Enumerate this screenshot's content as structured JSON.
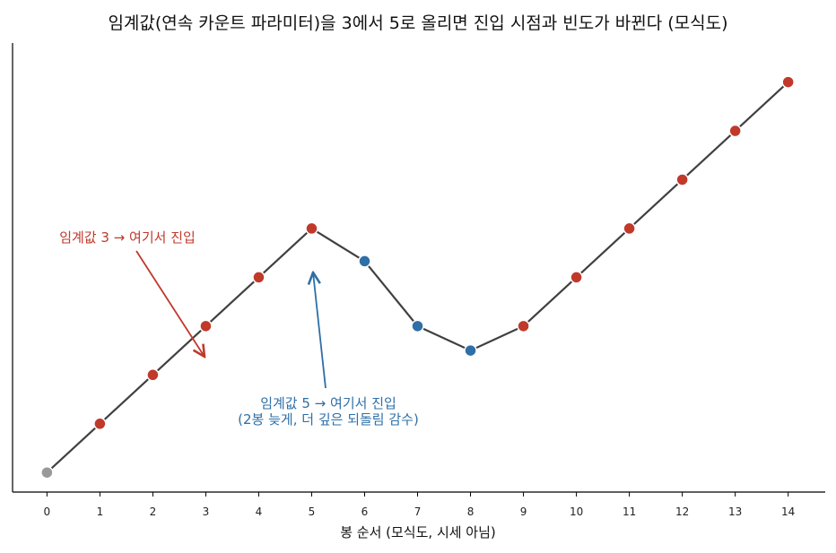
{
  "chart_data": {
    "type": "line",
    "title": "임계값(연속 카운트 파라미터)을 3에서 5로 올리면 진입 시점과 빈도가 바뀐다 (모식도)",
    "xlabel": "봉 순서 (모식도, 시세 아님)",
    "ylabel": "",
    "x": [
      0,
      1,
      2,
      3,
      4,
      5,
      6,
      7,
      8,
      9,
      10,
      11,
      12,
      13,
      14
    ],
    "y": [
      1.0,
      2.0,
      3.0,
      4.0,
      5.0,
      6.0,
      5.33,
      4.0,
      3.5,
      4.0,
      5.0,
      6.0,
      7.0,
      8.0,
      9.0
    ],
    "point_colors": [
      "#999999",
      "#c0392b",
      "#c0392b",
      "#c0392b",
      "#c0392b",
      "#c0392b",
      "#2e6fa7",
      "#2e6fa7",
      "#2e6fa7",
      "#c0392b",
      "#c0392b",
      "#c0392b",
      "#c0392b",
      "#c0392b",
      "#c0392b"
    ],
    "line_color": "#404040",
    "xlim": [
      -0.65,
      14.7
    ],
    "ylim": [
      0.6,
      9.8
    ],
    "y_ticks_shown": false,
    "grid": false,
    "annotations": [
      {
        "lines": [
          "임계값 3 → 여기서 진입"
        ],
        "color": "#c0392b",
        "target_index": 3
      },
      {
        "lines": [
          "임계값 5 → 여기서 진입",
          "(2봉 늦게, 더 깊은 되돌림 감수)"
        ],
        "color": "#2e6fa7",
        "target_index": 5
      }
    ]
  }
}
